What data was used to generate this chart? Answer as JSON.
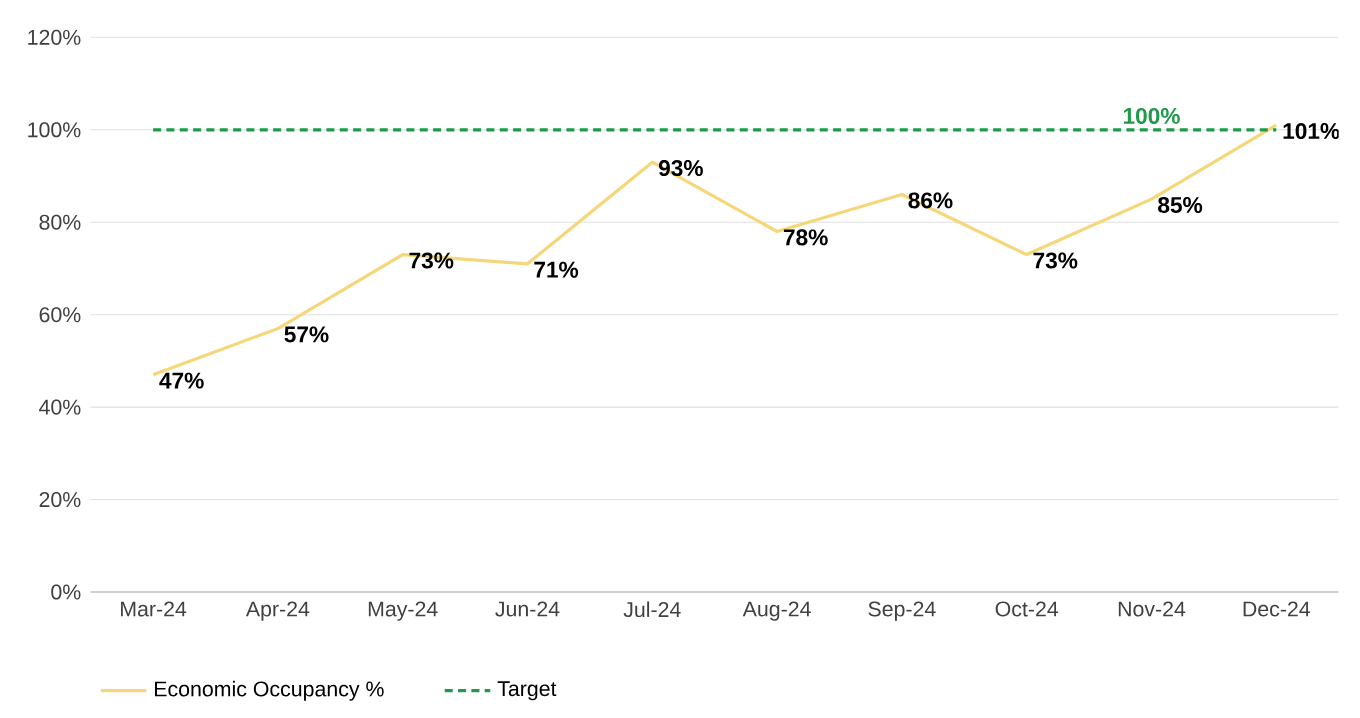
{
  "chart_data": {
    "type": "line",
    "categories": [
      "Mar-24",
      "Apr-24",
      "May-24",
      "Jun-24",
      "Jul-24",
      "Aug-24",
      "Sep-24",
      "Oct-24",
      "Nov-24",
      "Dec-24"
    ],
    "series": [
      {
        "name": "Economic Occupancy %",
        "color": "#f5d77a",
        "values": [
          47,
          57,
          73,
          71,
          93,
          78,
          86,
          73,
          85,
          101
        ],
        "value_labels": [
          "47%",
          "57%",
          "73%",
          "71%",
          "93%",
          "78%",
          "86%",
          "73%",
          "85%",
          "101%"
        ]
      },
      {
        "name": "Target",
        "color": "#1f9a4a",
        "line_style": "dashed",
        "values": [
          100,
          100,
          100,
          100,
          100,
          100,
          100,
          100,
          100,
          100
        ],
        "value_labels": [
          null,
          null,
          null,
          null,
          null,
          null,
          null,
          null,
          "100%",
          null
        ]
      }
    ],
    "ylim": [
      0,
      120
    ],
    "yticks": [
      {
        "value": 0,
        "label": "0%"
      },
      {
        "value": 20,
        "label": "20%"
      },
      {
        "value": 40,
        "label": "40%"
      },
      {
        "value": 60,
        "label": "60%"
      },
      {
        "value": 80,
        "label": "80%"
      },
      {
        "value": 100,
        "label": "100%"
      },
      {
        "value": 120,
        "label": "120%"
      }
    ],
    "grid": "y",
    "legend": "bottom",
    "marker": "none"
  }
}
